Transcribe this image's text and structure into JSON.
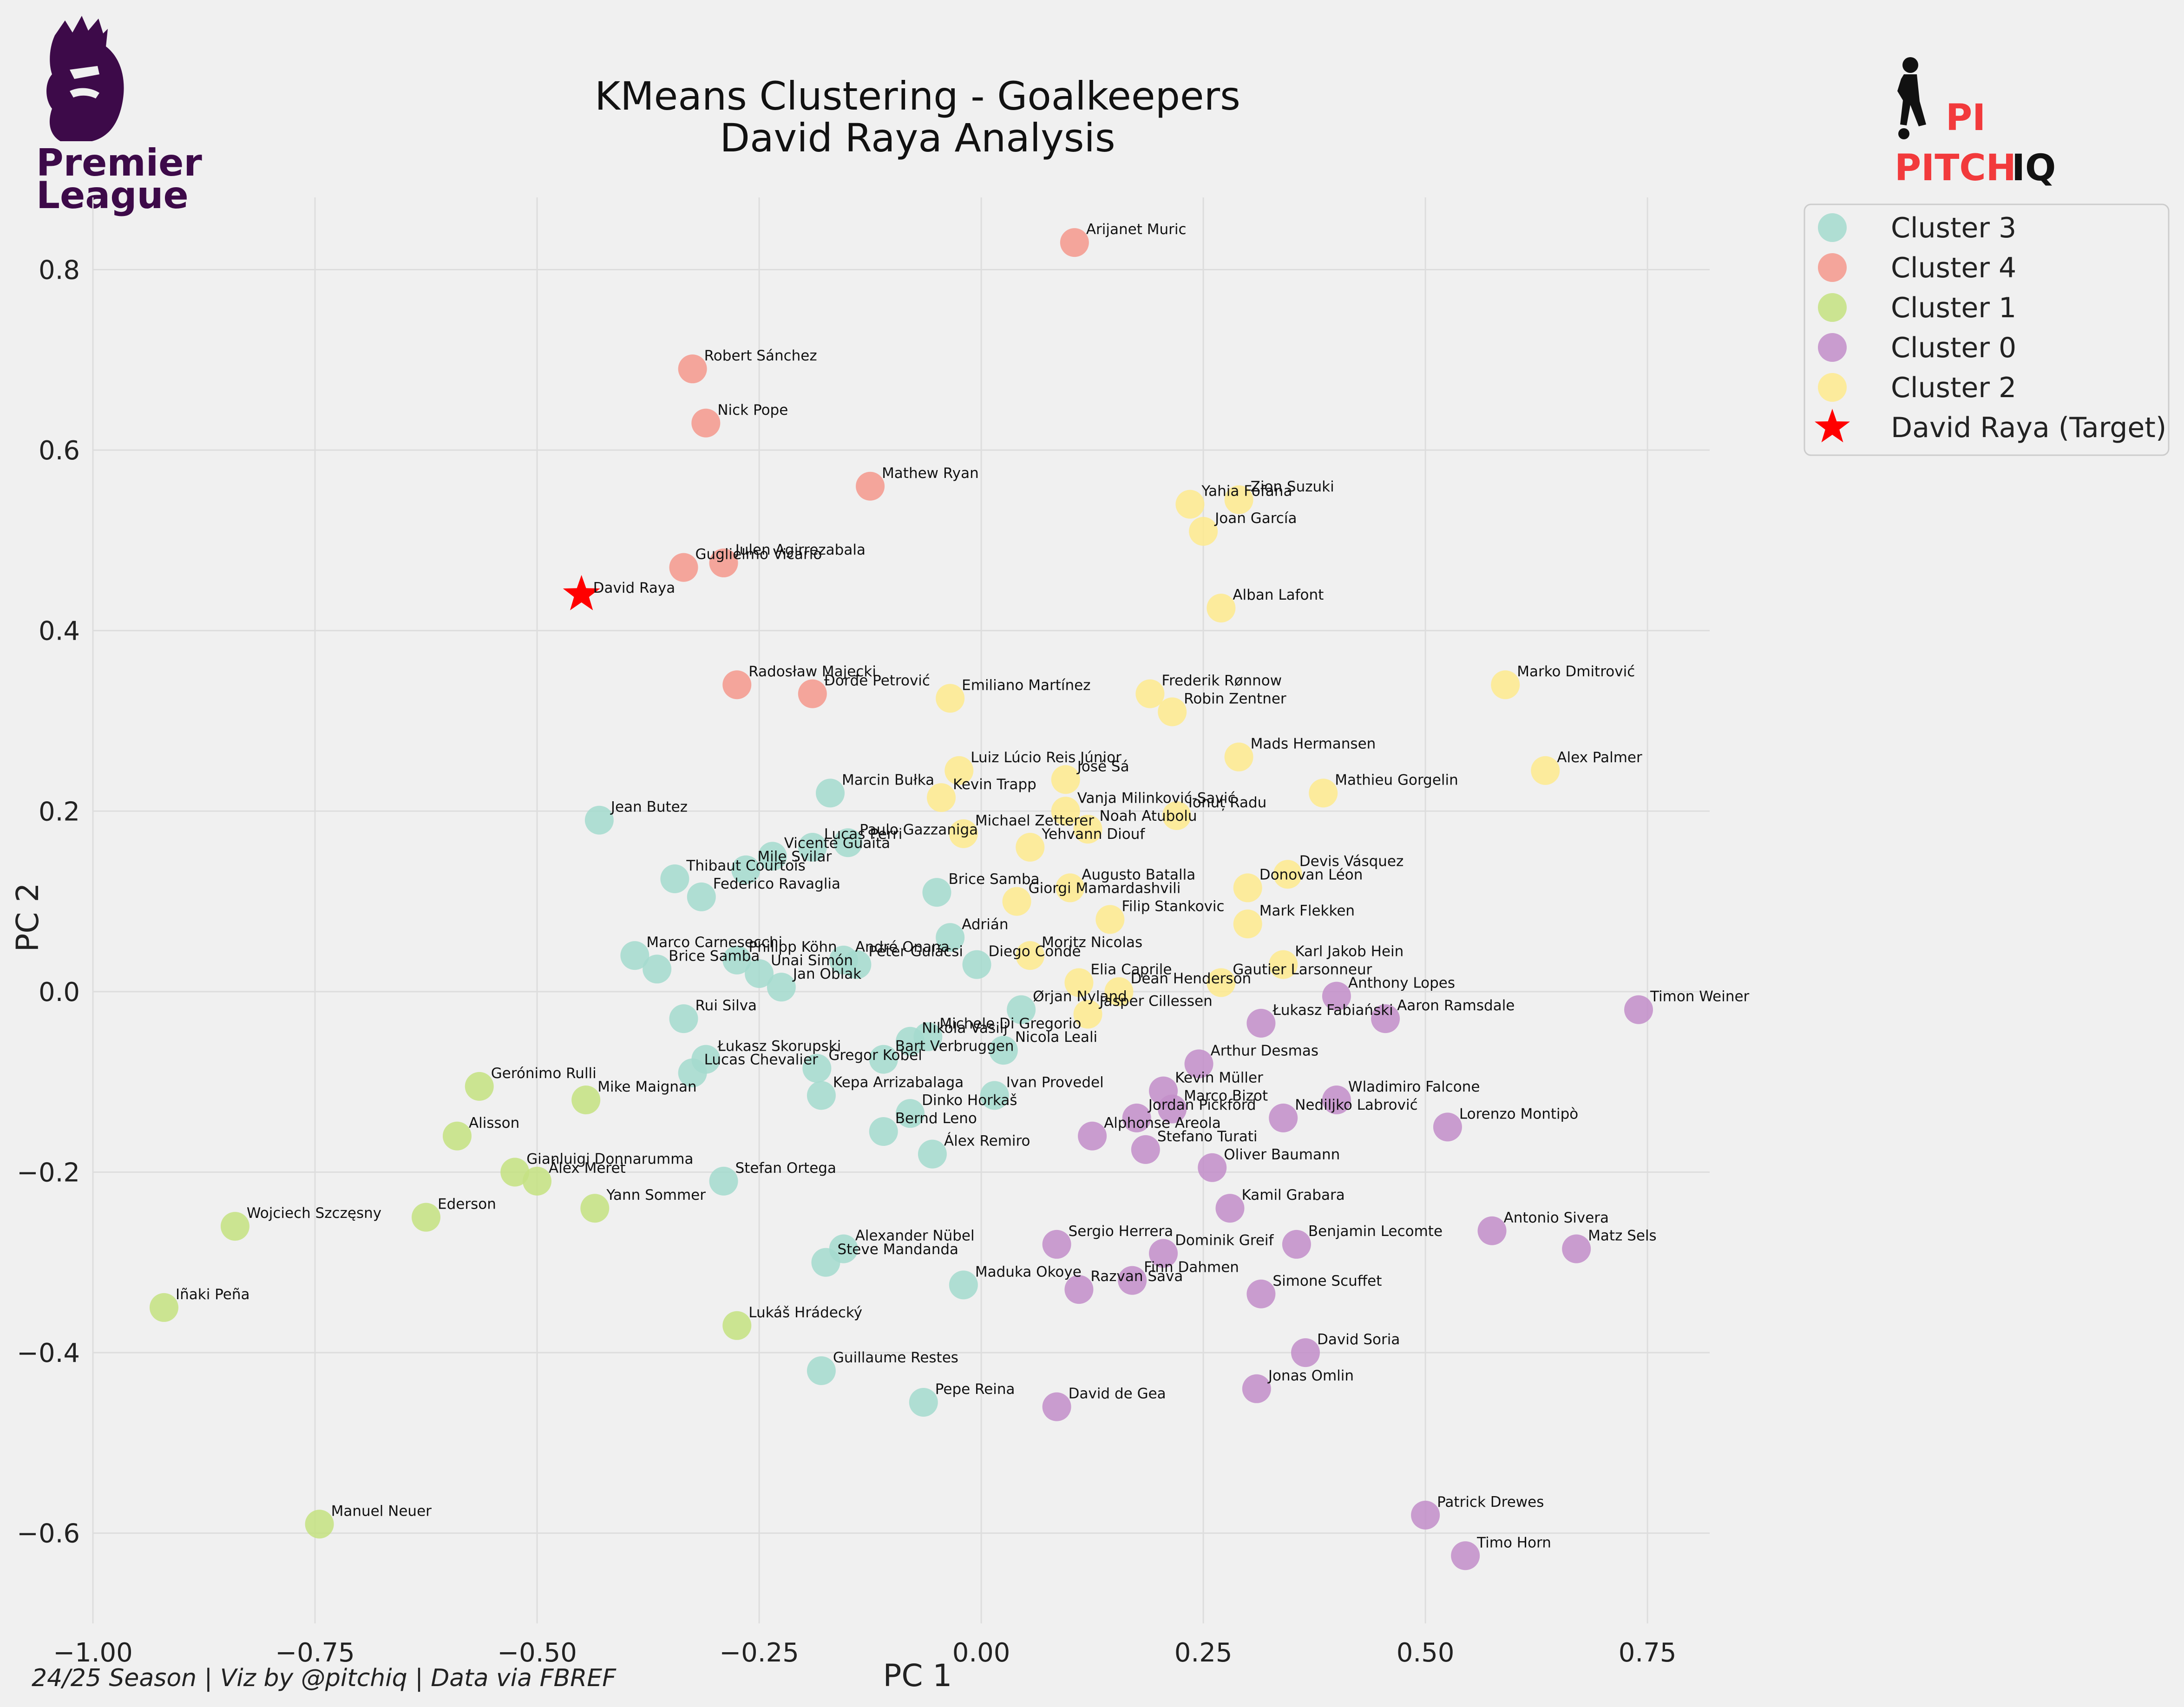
{
  "header": {
    "title_line1": "KMeans Clustering - Goalkeepers",
    "title_line2": "David Raya Analysis",
    "footer": "24/25 Season | Viz by @pitchiq | Data via FBREF"
  },
  "logos": {
    "left_logo_text": [
      "Premier",
      "League"
    ],
    "right_logo_text_a": "PITCH",
    "right_logo_text_b": "IQ",
    "right_logo_mark": "PI"
  },
  "colors": {
    "cluster_0": "#c390c9",
    "cluster_1": "#c5e183",
    "cluster_2": "#fde98f",
    "cluster_3": "#a5dbce",
    "cluster_4": "#f49a8e",
    "target": "#ff0000",
    "pl_purple": "#3d0a49",
    "piq_red": "#f23a3c"
  },
  "chart_data": {
    "type": "scatter",
    "xlabel": "PC 1",
    "ylabel": "PC 2",
    "xlim": [
      -1.0,
      0.82
    ],
    "ylim": [
      -0.7,
      0.88
    ],
    "xticks": [
      "−1.00",
      "−0.75",
      "−0.50",
      "−0.25",
      "0.00",
      "0.25",
      "0.50",
      "0.75"
    ],
    "xtick_values": [
      -1.0,
      -0.75,
      -0.5,
      -0.25,
      0.0,
      0.25,
      0.5,
      0.75
    ],
    "yticks": [
      "−0.6",
      "−0.4",
      "−0.2",
      "0.0",
      "0.2",
      "0.4",
      "0.6",
      "0.8"
    ],
    "ytick_values": [
      -0.6,
      -0.4,
      -0.2,
      0.0,
      0.2,
      0.4,
      0.6,
      0.8
    ],
    "grid": true,
    "legend_position": "outside-top-right",
    "legend": [
      "Cluster 3",
      "Cluster 4",
      "Cluster 1",
      "Cluster 0",
      "Cluster 2",
      "David Raya (Target)"
    ],
    "target": {
      "name": "David Raya",
      "x": -0.45,
      "y": 0.44
    },
    "series": [
      {
        "name": "Cluster 3",
        "color": "#a5dbce",
        "points": [
          {
            "name": "Jean Butez",
            "x": -0.43,
            "y": 0.19
          },
          {
            "name": "Marcin Bułka",
            "x": -0.17,
            "y": 0.22
          },
          {
            "name": "Lucas Perri",
            "x": -0.19,
            "y": 0.16
          },
          {
            "name": "Paulo Gazzaniga",
            "x": -0.15,
            "y": 0.165
          },
          {
            "name": "Vicente Guaita",
            "x": -0.235,
            "y": 0.15
          },
          {
            "name": "Mile Svilar",
            "x": -0.265,
            "y": 0.135
          },
          {
            "name": "Thibaut Courtois",
            "x": -0.345,
            "y": 0.125
          },
          {
            "name": "Federico Ravaglia",
            "x": -0.315,
            "y": 0.105
          },
          {
            "name": "Brice Samba",
            "x": -0.05,
            "y": 0.11
          },
          {
            "name": "Adrián",
            "x": -0.035,
            "y": 0.06
          },
          {
            "name": "Marco Carnesecchi",
            "x": -0.39,
            "y": 0.04
          },
          {
            "name": "Brice Samba",
            "x": -0.365,
            "y": 0.025
          },
          {
            "name": "Philipp Köhn",
            "x": -0.275,
            "y": 0.035
          },
          {
            "name": "Unai Simón",
            "x": -0.25,
            "y": 0.02
          },
          {
            "name": "André Onana",
            "x": -0.155,
            "y": 0.035
          },
          {
            "name": "Péter Gulácsi",
            "x": -0.14,
            "y": 0.03
          },
          {
            "name": "Diego Conde",
            "x": -0.005,
            "y": 0.03
          },
          {
            "name": "Jan Oblak",
            "x": -0.225,
            "y": 0.005
          },
          {
            "name": "Ørjan Nyland",
            "x": 0.045,
            "y": -0.02
          },
          {
            "name": "Rui Silva",
            "x": -0.335,
            "y": -0.03
          },
          {
            "name": "Michele Di Gregorio",
            "x": -0.06,
            "y": -0.05
          },
          {
            "name": "Nikola Vasilj",
            "x": -0.08,
            "y": -0.055
          },
          {
            "name": "Nicola Leali",
            "x": 0.025,
            "y": -0.065
          },
          {
            "name": "Bart Verbruggen",
            "x": -0.11,
            "y": -0.075
          },
          {
            "name": "Łukasz Skorupski",
            "x": -0.31,
            "y": -0.075
          },
          {
            "name": "Gregor Kobel",
            "x": -0.185,
            "y": -0.085
          },
          {
            "name": "Lucas Chevalier",
            "x": -0.325,
            "y": -0.09
          },
          {
            "name": "Kepa Arrizabalaga",
            "x": -0.18,
            "y": -0.115
          },
          {
            "name": "Ivan Provedel",
            "x": 0.015,
            "y": -0.115
          },
          {
            "name": "Dinko Horkaš",
            "x": -0.08,
            "y": -0.135
          },
          {
            "name": "Bernd Leno",
            "x": -0.11,
            "y": -0.155
          },
          {
            "name": "Álex Remiro",
            "x": -0.055,
            "y": -0.18
          },
          {
            "name": "Stefan Ortega",
            "x": -0.29,
            "y": -0.21
          },
          {
            "name": "Alexander Nübel",
            "x": -0.155,
            "y": -0.285
          },
          {
            "name": "Steve Mandanda",
            "x": -0.175,
            "y": -0.3
          },
          {
            "name": "Maduka Okoye",
            "x": -0.02,
            "y": -0.325
          },
          {
            "name": "Guillaume Restes",
            "x": -0.18,
            "y": -0.42
          },
          {
            "name": "Pepe Reina",
            "x": -0.065,
            "y": -0.455
          }
        ]
      },
      {
        "name": "Cluster 4",
        "color": "#f49a8e",
        "points": [
          {
            "name": "Arijanet Muric",
            "x": 0.105,
            "y": 0.83
          },
          {
            "name": "Robert Sánchez",
            "x": -0.325,
            "y": 0.69
          },
          {
            "name": "Nick Pope",
            "x": -0.31,
            "y": 0.63
          },
          {
            "name": "Mathew Ryan",
            "x": -0.125,
            "y": 0.56
          },
          {
            "name": "Julen Agirrezabala",
            "x": -0.29,
            "y": 0.475
          },
          {
            "name": "Guglielmo Vicario",
            "x": -0.335,
            "y": 0.47
          },
          {
            "name": "Radosław Majecki",
            "x": -0.275,
            "y": 0.34
          },
          {
            "name": "Đorđe Petrović",
            "x": -0.19,
            "y": 0.33
          }
        ]
      },
      {
        "name": "Cluster 1",
        "color": "#c5e183",
        "points": [
          {
            "name": "Gerónimo Rulli",
            "x": -0.565,
            "y": -0.105
          },
          {
            "name": "Mike Maignan",
            "x": -0.445,
            "y": -0.12
          },
          {
            "name": "Alisson",
            "x": -0.59,
            "y": -0.16
          },
          {
            "name": "Gianluigi Donnarumma",
            "x": -0.525,
            "y": -0.2
          },
          {
            "name": "Álex Meret",
            "x": -0.5,
            "y": -0.21
          },
          {
            "name": "Yann Sommer",
            "x": -0.435,
            "y": -0.24
          },
          {
            "name": "Ederson",
            "x": -0.625,
            "y": -0.25
          },
          {
            "name": "Wojciech Szczęsny",
            "x": -0.84,
            "y": -0.26
          },
          {
            "name": "Iñaki Peña",
            "x": -0.92,
            "y": -0.35
          },
          {
            "name": "Lukáš Hrádecký",
            "x": -0.275,
            "y": -0.37
          },
          {
            "name": "Manuel Neuer",
            "x": -0.745,
            "y": -0.59
          }
        ]
      },
      {
        "name": "Cluster 0",
        "color": "#c390c9",
        "points": [
          {
            "name": "Timon Weiner",
            "x": 0.74,
            "y": -0.02
          },
          {
            "name": "Anthony Lopes",
            "x": 0.4,
            "y": -0.005
          },
          {
            "name": "Aaron Ramsdale",
            "x": 0.455,
            "y": -0.03
          },
          {
            "name": "Łukasz Fabiański",
            "x": 0.315,
            "y": -0.035
          },
          {
            "name": "Arthur Desmas",
            "x": 0.245,
            "y": -0.08
          },
          {
            "name": "Kevin Müller",
            "x": 0.205,
            "y": -0.11
          },
          {
            "name": "Wladimiro Falcone",
            "x": 0.4,
            "y": -0.12
          },
          {
            "name": "Marco Bizot",
            "x": 0.215,
            "y": -0.13
          },
          {
            "name": "Jordan Pickford",
            "x": 0.175,
            "y": -0.14
          },
          {
            "name": "Nediljko Labrović",
            "x": 0.34,
            "y": -0.14
          },
          {
            "name": "Lorenzo Montipò",
            "x": 0.525,
            "y": -0.15
          },
          {
            "name": "Alphonse Areola",
            "x": 0.125,
            "y": -0.16
          },
          {
            "name": "Stefano Turati",
            "x": 0.185,
            "y": -0.175
          },
          {
            "name": "Oliver Baumann",
            "x": 0.26,
            "y": -0.195
          },
          {
            "name": "Kamil Grabara",
            "x": 0.28,
            "y": -0.24
          },
          {
            "name": "Antonio Sivera",
            "x": 0.575,
            "y": -0.265
          },
          {
            "name": "Sergio Herrera",
            "x": 0.085,
            "y": -0.28
          },
          {
            "name": "Benjamin Lecomte",
            "x": 0.355,
            "y": -0.28
          },
          {
            "name": "Matz Sels",
            "x": 0.67,
            "y": -0.285
          },
          {
            "name": "Dominik Greif",
            "x": 0.205,
            "y": -0.29
          },
          {
            "name": "Finn Dahmen",
            "x": 0.17,
            "y": -0.32
          },
          {
            "name": "Razvan Sava",
            "x": 0.11,
            "y": -0.33
          },
          {
            "name": "Simone Scuffet",
            "x": 0.315,
            "y": -0.335
          },
          {
            "name": "David Soria",
            "x": 0.365,
            "y": -0.4
          },
          {
            "name": "Jonas Omlin",
            "x": 0.31,
            "y": -0.44
          },
          {
            "name": "David de Gea",
            "x": 0.085,
            "y": -0.46
          },
          {
            "name": "Patrick Drewes",
            "x": 0.5,
            "y": -0.58
          },
          {
            "name": "Timo Horn",
            "x": 0.545,
            "y": -0.625
          }
        ]
      },
      {
        "name": "Cluster 2",
        "color": "#fde98f",
        "points": [
          {
            "name": "Zion Suzuki",
            "x": 0.29,
            "y": 0.545
          },
          {
            "name": "Yahia Fofana",
            "x": 0.235,
            "y": 0.54
          },
          {
            "name": "Joan García",
            "x": 0.25,
            "y": 0.51
          },
          {
            "name": "Alban Lafont",
            "x": 0.27,
            "y": 0.425
          },
          {
            "name": "Marko Dmitrović",
            "x": 0.59,
            "y": 0.34
          },
          {
            "name": "Frederik Rønnow",
            "x": 0.19,
            "y": 0.33
          },
          {
            "name": "Emiliano Martínez",
            "x": -0.035,
            "y": 0.325
          },
          {
            "name": "Robin Zentner",
            "x": 0.215,
            "y": 0.31
          },
          {
            "name": "Mads Hermansen",
            "x": 0.29,
            "y": 0.26
          },
          {
            "name": "Luiz Lúcio Reis Júnior",
            "x": -0.025,
            "y": 0.245
          },
          {
            "name": "Alex Palmer",
            "x": 0.635,
            "y": 0.245
          },
          {
            "name": "José Sá",
            "x": 0.095,
            "y": 0.235
          },
          {
            "name": "Mathieu Gorgelin",
            "x": 0.385,
            "y": 0.22
          },
          {
            "name": "Kevin Trapp",
            "x": -0.045,
            "y": 0.215
          },
          {
            "name": "Vanja Milinković-Savić",
            "x": 0.095,
            "y": 0.2
          },
          {
            "name": "Ionuț Radu",
            "x": 0.22,
            "y": 0.195
          },
          {
            "name": "Noah Atubolu",
            "x": 0.12,
            "y": 0.18
          },
          {
            "name": "Michael Zetterer",
            "x": -0.02,
            "y": 0.175
          },
          {
            "name": "Yehvann Diouf",
            "x": 0.055,
            "y": 0.16
          },
          {
            "name": "Devis Vásquez",
            "x": 0.345,
            "y": 0.13
          },
          {
            "name": "Donovan Léon",
            "x": 0.3,
            "y": 0.115
          },
          {
            "name": "Augusto Batalla",
            "x": 0.1,
            "y": 0.115
          },
          {
            "name": "Giorgi Mamardashvili",
            "x": 0.04,
            "y": 0.1
          },
          {
            "name": "Filip Stankovic",
            "x": 0.145,
            "y": 0.08
          },
          {
            "name": "Mark Flekken",
            "x": 0.3,
            "y": 0.075
          },
          {
            "name": "Moritz Nicolas",
            "x": 0.055,
            "y": 0.04
          },
          {
            "name": "Karl Jakob Hein",
            "x": 0.34,
            "y": 0.03
          },
          {
            "name": "Elia Caprile",
            "x": 0.11,
            "y": 0.01
          },
          {
            "name": "Gautier Larsonneur",
            "x": 0.27,
            "y": 0.01
          },
          {
            "name": "Dean Henderson",
            "x": 0.155,
            "y": 0.0
          },
          {
            "name": "Jasper Cillessen",
            "x": 0.12,
            "y": -0.025
          }
        ]
      }
    ]
  }
}
